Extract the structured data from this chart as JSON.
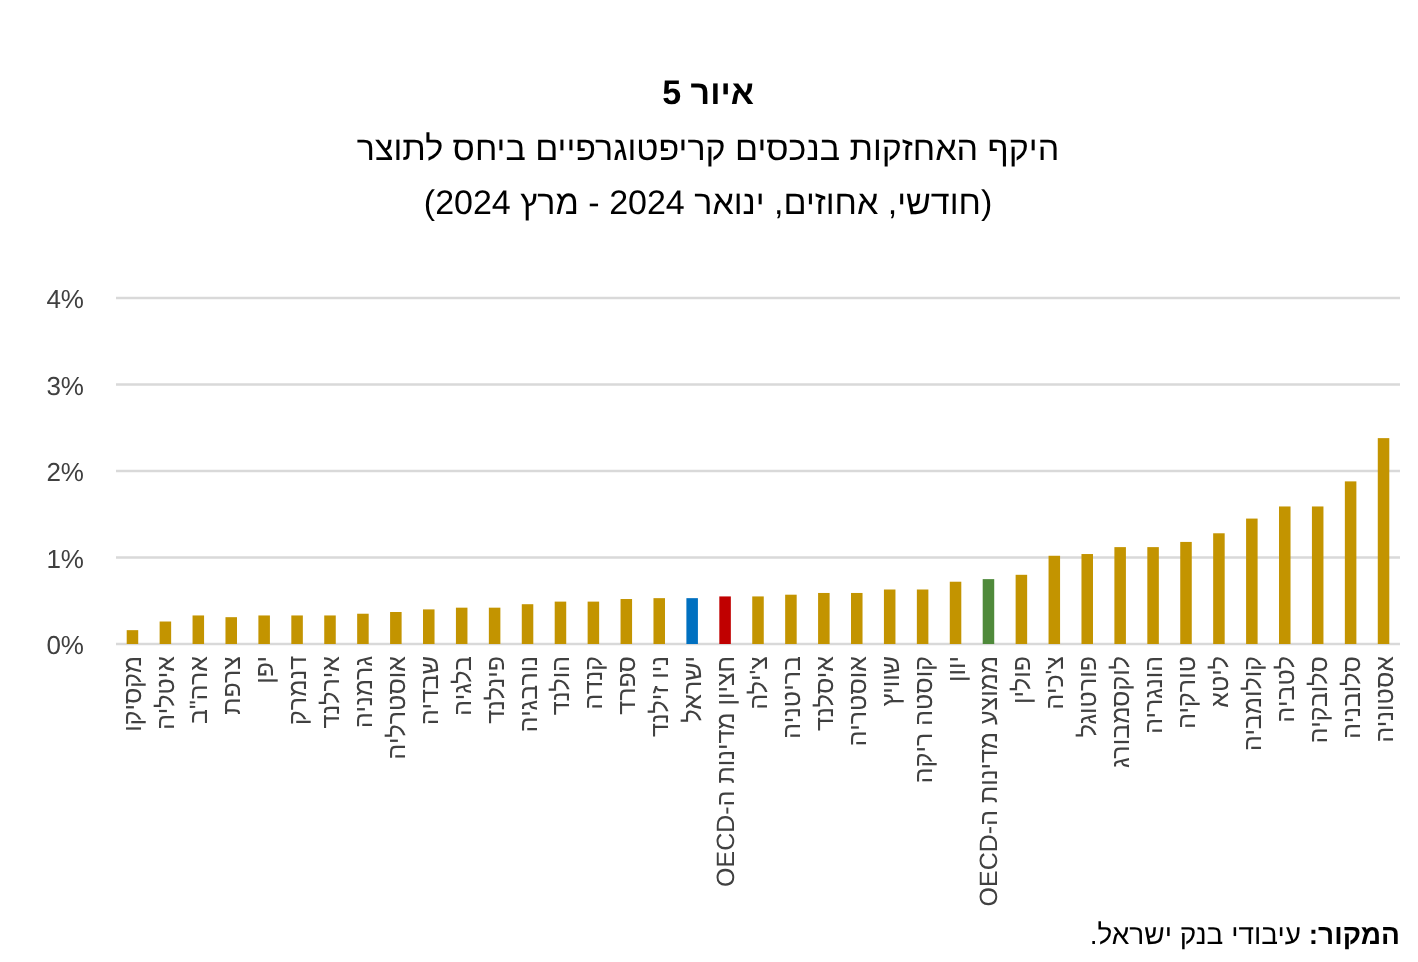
{
  "chart_data": {
    "type": "bar",
    "title": "איור 5",
    "subtitle": "היקף האחזקות בנכסים קריפטוגרפיים ביחס לתוצר\n(חודשי, אחוזים, ינואר 2024 - מרץ 2024)",
    "categories": [
      "מקסיקו",
      "איטליה",
      "ארה\"ב",
      "צרפת",
      "יפן",
      "דנמרק",
      "אירלנד",
      "גרמניה",
      "אוסטרליה",
      "שבדיה",
      "בלגיה",
      "פינלנד",
      "נורבגיה",
      "הולנד",
      "קנדה",
      "ספרד",
      "ניו זילנד",
      "ישראל",
      "חציון מדינות ה-OECD",
      "צ'ילה",
      "בריטניה",
      "איסלנד",
      "אוסטריה",
      "שוויץ",
      "קוסטה ריקה",
      "יוון",
      "ממוצע מדינות ה-OECD",
      "פולין",
      "צ'כיה",
      "פורטוגל",
      "לוקסמבורג",
      "הונגריה",
      "טורקיה",
      "ליטא",
      "קולומביה",
      "לטביה",
      "סלובקיה",
      "סלובניה",
      "אסטוניה"
    ],
    "values": [
      0.16,
      0.26,
      0.33,
      0.31,
      0.33,
      0.33,
      0.33,
      0.35,
      0.37,
      0.4,
      0.42,
      0.42,
      0.46,
      0.49,
      0.49,
      0.52,
      0.53,
      0.53,
      0.55,
      0.55,
      0.57,
      0.59,
      0.59,
      0.63,
      0.63,
      0.72,
      0.75,
      0.8,
      1.02,
      1.04,
      1.12,
      1.12,
      1.18,
      1.28,
      1.45,
      1.59,
      1.59,
      1.88,
      2.38
    ],
    "colors": [
      "#c39400",
      "#c39400",
      "#c39400",
      "#c39400",
      "#c39400",
      "#c39400",
      "#c39400",
      "#c39400",
      "#c39400",
      "#c39400",
      "#c39400",
      "#c39400",
      "#c39400",
      "#c39400",
      "#c39400",
      "#c39400",
      "#c39400",
      "#0070c0",
      "#c00000",
      "#c39400",
      "#c39400",
      "#c39400",
      "#c39400",
      "#c39400",
      "#c39400",
      "#c39400",
      "#4f8a3b",
      "#c39400",
      "#c39400",
      "#c39400",
      "#c39400",
      "#c39400",
      "#c39400",
      "#c39400",
      "#c39400",
      "#c39400",
      "#c39400",
      "#c39400",
      "#c39400"
    ],
    "ylim": [
      0,
      4
    ],
    "yticks": [
      {
        "value": 0,
        "label": "0%"
      },
      {
        "value": 1,
        "label": "1%"
      },
      {
        "value": 2,
        "label": "2%"
      },
      {
        "value": 3,
        "label": "3%"
      },
      {
        "value": 4,
        "label": "4%"
      }
    ],
    "grid": "y",
    "annotations": [
      "המקור: עיבודי בנק ישראל."
    ]
  }
}
